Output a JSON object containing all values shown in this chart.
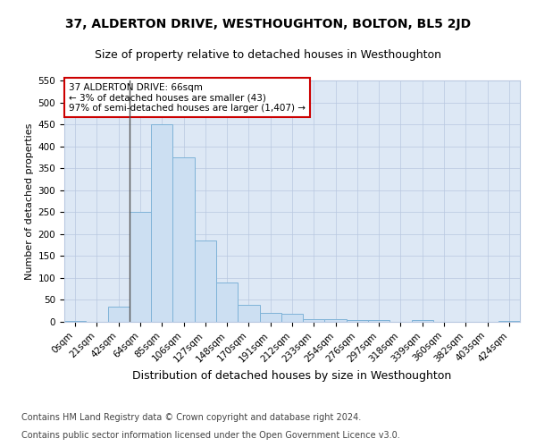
{
  "title1": "37, ALDERTON DRIVE, WESTHOUGHTON, BOLTON, BL5 2JD",
  "title2": "Size of property relative to detached houses in Westhoughton",
  "xlabel": "Distribution of detached houses by size in Westhoughton",
  "ylabel": "Number of detached properties",
  "footnote1": "Contains HM Land Registry data © Crown copyright and database right 2024.",
  "footnote2": "Contains public sector information licensed under the Open Government Licence v3.0.",
  "bin_labels": [
    "0sqm",
    "21sqm",
    "42sqm",
    "64sqm",
    "85sqm",
    "106sqm",
    "127sqm",
    "148sqm",
    "170sqm",
    "191sqm",
    "212sqm",
    "233sqm",
    "254sqm",
    "276sqm",
    "297sqm",
    "318sqm",
    "339sqm",
    "360sqm",
    "382sqm",
    "403sqm",
    "424sqm"
  ],
  "bar_values": [
    3,
    0,
    35,
    250,
    450,
    375,
    185,
    90,
    38,
    20,
    18,
    6,
    6,
    5,
    5,
    0,
    5,
    0,
    0,
    0,
    3
  ],
  "bar_color": "#ccdff2",
  "bar_edge_color": "#7fb3d8",
  "annotation_text": "37 ALDERTON DRIVE: 66sqm\n← 3% of detached houses are smaller (43)\n97% of semi-detached houses are larger (1,407) →",
  "annotation_box_facecolor": "#ffffff",
  "annotation_box_edgecolor": "#cc0000",
  "vline_index": 2.5,
  "vline_color": "#555555",
  "ylim": [
    0,
    550
  ],
  "yticks": [
    0,
    50,
    100,
    150,
    200,
    250,
    300,
    350,
    400,
    450,
    500,
    550
  ],
  "plot_bg_color": "#dde8f5",
  "grid_color": "#b8c8e0",
  "title1_fontsize": 10,
  "title2_fontsize": 9,
  "xlabel_fontsize": 9,
  "ylabel_fontsize": 8,
  "tick_fontsize": 7.5,
  "annotation_fontsize": 7.5,
  "footnote_fontsize": 7
}
